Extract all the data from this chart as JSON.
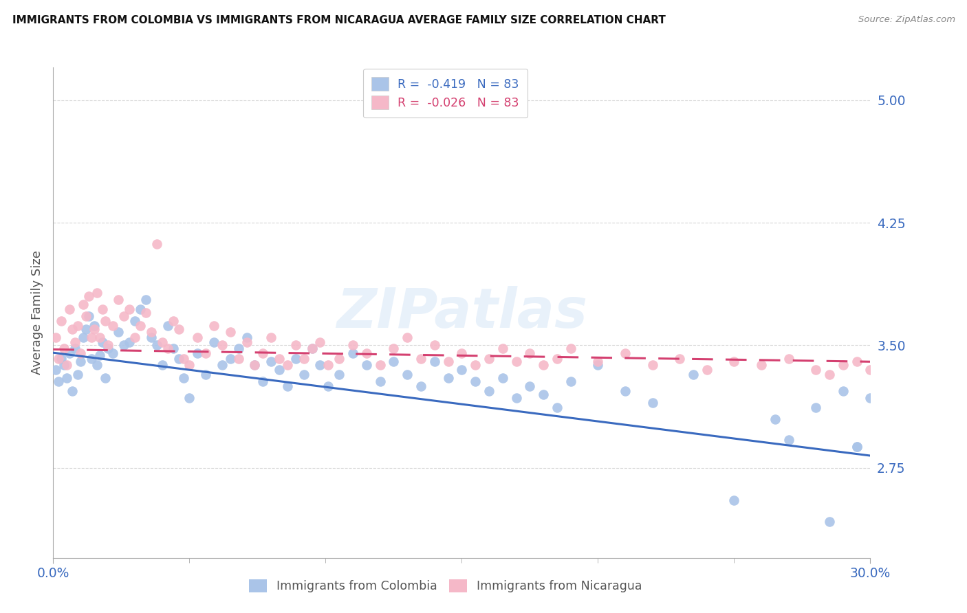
{
  "title": "IMMIGRANTS FROM COLOMBIA VS IMMIGRANTS FROM NICARAGUA AVERAGE FAMILY SIZE CORRELATION CHART",
  "source": "Source: ZipAtlas.com",
  "ylabel": "Average Family Size",
  "yticks": [
    2.75,
    3.5,
    4.25,
    5.0
  ],
  "xlim": [
    0.0,
    0.3
  ],
  "ylim": [
    2.2,
    5.2
  ],
  "colombia_color": "#aac4e8",
  "nicaragua_color": "#f5b8c8",
  "colombia_line_color": "#3a6abf",
  "nicaragua_line_color": "#d44070",
  "background_color": "#ffffff",
  "grid_color": "#cccccc",
  "tick_label_color": "#3a6abf",
  "watermark": "ZIPatlas",
  "colombia_R": -0.419,
  "colombia_N": 83,
  "nicaragua_R": -0.026,
  "nicaragua_N": 83,
  "colombia_intercept": 3.455,
  "colombia_slope": -2.1,
  "nicaragua_intercept": 3.475,
  "nicaragua_slope": -0.25,
  "colombia_x": [
    0.001,
    0.002,
    0.003,
    0.004,
    0.005,
    0.006,
    0.007,
    0.008,
    0.009,
    0.01,
    0.011,
    0.012,
    0.013,
    0.014,
    0.015,
    0.016,
    0.017,
    0.018,
    0.019,
    0.02,
    0.022,
    0.024,
    0.026,
    0.028,
    0.03,
    0.032,
    0.034,
    0.036,
    0.038,
    0.04,
    0.042,
    0.044,
    0.046,
    0.048,
    0.05,
    0.053,
    0.056,
    0.059,
    0.062,
    0.065,
    0.068,
    0.071,
    0.074,
    0.077,
    0.08,
    0.083,
    0.086,
    0.089,
    0.092,
    0.095,
    0.098,
    0.101,
    0.105,
    0.11,
    0.115,
    0.12,
    0.125,
    0.13,
    0.135,
    0.14,
    0.145,
    0.15,
    0.155,
    0.16,
    0.165,
    0.17,
    0.175,
    0.18,
    0.185,
    0.19,
    0.2,
    0.21,
    0.22,
    0.235,
    0.25,
    0.265,
    0.27,
    0.28,
    0.29,
    0.295,
    0.3,
    0.295,
    0.285
  ],
  "colombia_y": [
    3.35,
    3.28,
    3.42,
    3.38,
    3.3,
    3.45,
    3.22,
    3.48,
    3.32,
    3.4,
    3.55,
    3.6,
    3.68,
    3.42,
    3.62,
    3.38,
    3.44,
    3.52,
    3.3,
    3.48,
    3.45,
    3.58,
    3.5,
    3.52,
    3.65,
    3.72,
    3.78,
    3.55,
    3.5,
    3.38,
    3.62,
    3.48,
    3.42,
    3.3,
    3.18,
    3.45,
    3.32,
    3.52,
    3.38,
    3.42,
    3.48,
    3.55,
    3.38,
    3.28,
    3.4,
    3.35,
    3.25,
    3.42,
    3.32,
    3.48,
    3.38,
    3.25,
    3.32,
    3.45,
    3.38,
    3.28,
    3.4,
    3.32,
    3.25,
    3.4,
    3.3,
    3.35,
    3.28,
    3.22,
    3.3,
    3.18,
    3.25,
    3.2,
    3.12,
    3.28,
    3.38,
    3.22,
    3.15,
    3.32,
    2.55,
    3.05,
    2.92,
    3.12,
    3.22,
    2.88,
    3.18,
    2.88,
    2.42
  ],
  "nicaragua_x": [
    0.001,
    0.002,
    0.003,
    0.004,
    0.005,
    0.006,
    0.007,
    0.008,
    0.009,
    0.01,
    0.011,
    0.012,
    0.013,
    0.014,
    0.015,
    0.016,
    0.017,
    0.018,
    0.019,
    0.02,
    0.022,
    0.024,
    0.026,
    0.028,
    0.03,
    0.032,
    0.034,
    0.036,
    0.038,
    0.04,
    0.042,
    0.044,
    0.046,
    0.048,
    0.05,
    0.053,
    0.056,
    0.059,
    0.062,
    0.065,
    0.068,
    0.071,
    0.074,
    0.077,
    0.08,
    0.083,
    0.086,
    0.089,
    0.092,
    0.095,
    0.098,
    0.101,
    0.105,
    0.11,
    0.115,
    0.12,
    0.125,
    0.13,
    0.135,
    0.14,
    0.145,
    0.15,
    0.155,
    0.16,
    0.165,
    0.17,
    0.175,
    0.18,
    0.185,
    0.19,
    0.2,
    0.21,
    0.22,
    0.23,
    0.24,
    0.25,
    0.26,
    0.27,
    0.28,
    0.29,
    0.295,
    0.3,
    0.285
  ],
  "nicaragua_y": [
    3.55,
    3.42,
    3.65,
    3.48,
    3.38,
    3.72,
    3.6,
    3.52,
    3.62,
    3.45,
    3.75,
    3.68,
    3.8,
    3.55,
    3.6,
    3.82,
    3.55,
    3.72,
    3.65,
    3.5,
    3.62,
    3.78,
    3.68,
    3.72,
    3.55,
    3.62,
    3.7,
    3.58,
    4.12,
    3.52,
    3.48,
    3.65,
    3.6,
    3.42,
    3.38,
    3.55,
    3.45,
    3.62,
    3.5,
    3.58,
    3.42,
    3.52,
    3.38,
    3.45,
    3.55,
    3.42,
    3.38,
    3.5,
    3.42,
    3.48,
    3.52,
    3.38,
    3.42,
    3.5,
    3.45,
    3.38,
    3.48,
    3.55,
    3.42,
    3.5,
    3.4,
    3.45,
    3.38,
    3.42,
    3.48,
    3.4,
    3.45,
    3.38,
    3.42,
    3.48,
    3.4,
    3.45,
    3.38,
    3.42,
    3.35,
    3.4,
    3.38,
    3.42,
    3.35,
    3.38,
    3.4,
    3.35,
    3.32
  ]
}
